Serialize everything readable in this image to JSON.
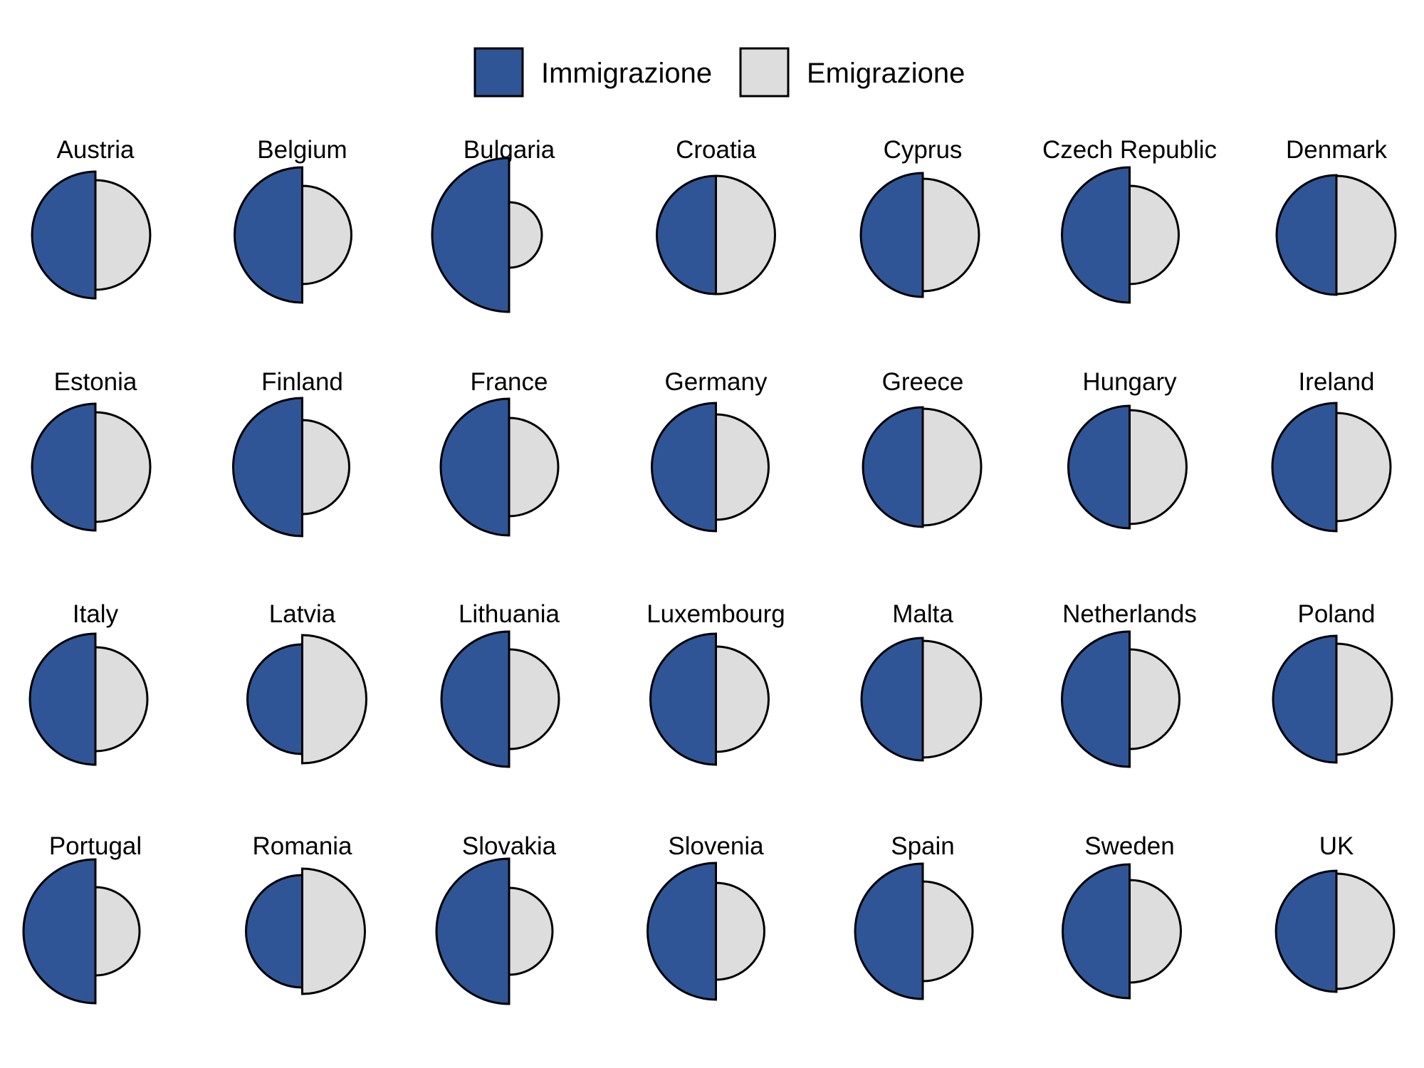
{
  "chart_data": {
    "type": "semicircle-pairs",
    "legend": {
      "placement": "top-center",
      "items": [
        {
          "label": "Immigrazione",
          "color": "#2f5597"
        },
        {
          "label": "Emigrazione",
          "color": "#dddddd"
        }
      ]
    },
    "series": [
      {
        "name": "Immigrazione",
        "color": "#2f5597"
      },
      {
        "name": "Emigrazione",
        "color": "#dddddd"
      }
    ],
    "outline_color": "#000000",
    "panels": [
      {
        "country": "Austria",
        "immigration_radius": 89,
        "emigration_radius": 77
      },
      {
        "country": "Belgium",
        "immigration_radius": 95,
        "emigration_radius": 69
      },
      {
        "country": "Bulgaria",
        "immigration_radius": 108,
        "emigration_radius": 46
      },
      {
        "country": "Croatia",
        "immigration_radius": 83,
        "emigration_radius": 83
      },
      {
        "country": "Cyprus",
        "immigration_radius": 87,
        "emigration_radius": 79
      },
      {
        "country": "Czech Republic",
        "immigration_radius": 95,
        "emigration_radius": 69
      },
      {
        "country": "Denmark",
        "immigration_radius": 84,
        "emigration_radius": 83
      },
      {
        "country": "Estonia",
        "immigration_radius": 89,
        "emigration_radius": 77
      },
      {
        "country": "Finland",
        "immigration_radius": 97,
        "emigration_radius": 66
      },
      {
        "country": "France",
        "immigration_radius": 96,
        "emigration_radius": 69
      },
      {
        "country": "Germany",
        "immigration_radius": 90,
        "emigration_radius": 74
      },
      {
        "country": "Greece",
        "immigration_radius": 84,
        "emigration_radius": 82
      },
      {
        "country": "Hungary",
        "immigration_radius": 86,
        "emigration_radius": 80
      },
      {
        "country": "Ireland",
        "immigration_radius": 90,
        "emigration_radius": 76
      },
      {
        "country": "Italy",
        "immigration_radius": 92,
        "emigration_radius": 73
      },
      {
        "country": "Latvia",
        "immigration_radius": 77,
        "emigration_radius": 90
      },
      {
        "country": "Lithuania",
        "immigration_radius": 95,
        "emigration_radius": 70
      },
      {
        "country": "Luxembourg",
        "immigration_radius": 92,
        "emigration_radius": 74
      },
      {
        "country": "Malta",
        "immigration_radius": 86,
        "emigration_radius": 82
      },
      {
        "country": "Netherlands",
        "immigration_radius": 95,
        "emigration_radius": 70
      },
      {
        "country": "Poland",
        "immigration_radius": 89,
        "emigration_radius": 78
      },
      {
        "country": "Portugal",
        "immigration_radius": 101,
        "emigration_radius": 62
      },
      {
        "country": "Romania",
        "immigration_radius": 79,
        "emigration_radius": 88
      },
      {
        "country": "Slovakia",
        "immigration_radius": 102,
        "emigration_radius": 61
      },
      {
        "country": "Slovenia",
        "immigration_radius": 96,
        "emigration_radius": 68
      },
      {
        "country": "Spain",
        "immigration_radius": 95,
        "emigration_radius": 70
      },
      {
        "country": "Sweden",
        "immigration_radius": 94,
        "emigration_radius": 72
      },
      {
        "country": "UK",
        "immigration_radius": 85,
        "emigration_radius": 81
      }
    ]
  }
}
